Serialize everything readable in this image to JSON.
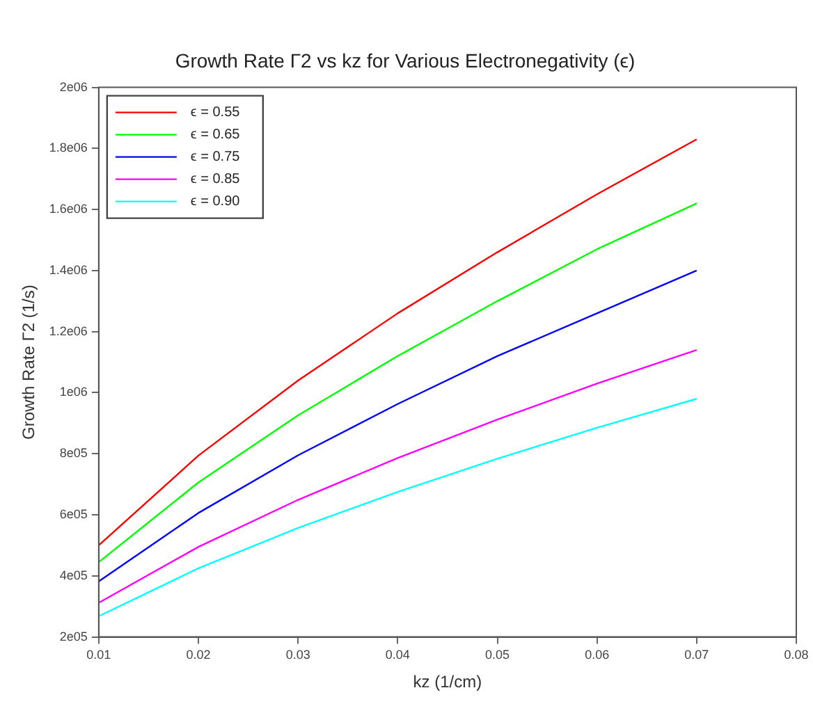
{
  "chart_data": {
    "type": "line",
    "title": "Growth Rate Γ2 vs kz for Various Electronegativity (ϵ)",
    "xlabel": "kz (1/cm)",
    "ylabel": "Growth Rate Γ2 (1/s)",
    "x": [
      0.01,
      0.02,
      0.03,
      0.04,
      0.05,
      0.06,
      0.07
    ],
    "series": [
      {
        "name": "ϵ = 0.55",
        "color": "#ff0000",
        "values": [
          500000,
          794000,
          1040000,
          1260000,
          1460000,
          1650000,
          1830000
        ]
      },
      {
        "name": "ϵ = 0.65",
        "color": "#00ff00",
        "values": [
          445000,
          706000,
          926000,
          1120000,
          1300000,
          1470000,
          1620000
        ]
      },
      {
        "name": "ϵ = 0.75",
        "color": "#0000ff",
        "values": [
          382000,
          606000,
          795000,
          963000,
          1120000,
          1260000,
          1400000
        ]
      },
      {
        "name": "ϵ = 0.85",
        "color": "#ff00ff",
        "values": [
          312000,
          495000,
          649000,
          786000,
          912000,
          1030000,
          1140000
        ]
      },
      {
        "name": "ϵ = 0.90",
        "color": "#00ffff",
        "values": [
          268000,
          425000,
          557000,
          675000,
          784000,
          885000,
          980000
        ]
      }
    ],
    "xlim": [
      0.01,
      0.08
    ],
    "xticks": [
      0.01,
      0.02,
      0.03,
      0.04,
      0.05,
      0.06,
      0.07,
      0.08
    ],
    "ylim": [
      200000,
      2000000
    ],
    "yticks": [
      {
        "value": 200000,
        "label": "2e05"
      },
      {
        "value": 400000,
        "label": "4e05"
      },
      {
        "value": 600000,
        "label": "6e05"
      },
      {
        "value": 800000,
        "label": "8e05"
      },
      {
        "value": 1000000,
        "label": "1e06"
      },
      {
        "value": 1200000,
        "label": "1.2e06"
      },
      {
        "value": 1400000,
        "label": "1.4e06"
      },
      {
        "value": 1600000,
        "label": "1.6e06"
      },
      {
        "value": 1800000,
        "label": "1.8e06"
      },
      {
        "value": 2000000,
        "label": "2e06"
      }
    ],
    "grid": false,
    "legend": "top left",
    "marker": "none",
    "line_style": "solid"
  }
}
